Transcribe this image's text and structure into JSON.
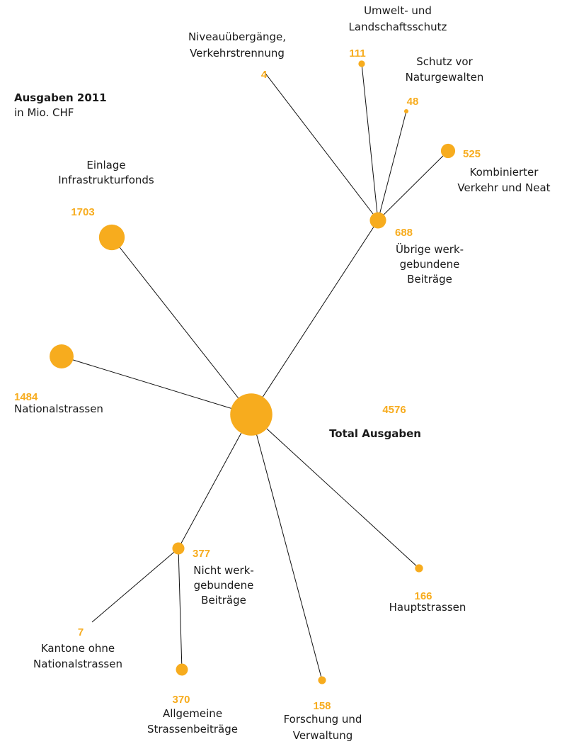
{
  "title": "Ausgaben 2011",
  "subtitle": "in Mio. CHF",
  "total": {
    "value": 4576,
    "label": [
      "Total Ausgaben"
    ],
    "children": [
      {
        "value": 1703,
        "label": [
          "Einlage",
          "Infrastrukturfonds"
        ]
      },
      {
        "value": 1484,
        "label": [
          "Nationalstrassen"
        ]
      },
      {
        "value": 688,
        "label": [
          "Übrige werk-",
          "gebundene",
          "Beiträge"
        ],
        "children": [
          {
            "value": 4,
            "label": [
              "Niveauübergänge,",
              "Verkehrstrennung"
            ]
          },
          {
            "value": 111,
            "label": [
              "Umwelt- und",
              "Landschaftsschutz"
            ]
          },
          {
            "value": 48,
            "label": [
              "Schutz vor",
              "Naturgewalten"
            ]
          },
          {
            "value": 525,
            "label": [
              "Kombinierter",
              "Verkehr und Neat"
            ]
          }
        ]
      },
      {
        "value": 377,
        "label": [
          "Nicht werk-",
          "gebundene",
          "Beiträge"
        ],
        "children": [
          {
            "value": 7,
            "label": [
              "Kantone ohne",
              "Nationalstrassen"
            ]
          },
          {
            "value": 370,
            "label": [
              "Allgemeine",
              "Strassenbeiträge"
            ]
          }
        ]
      },
      {
        "value": 158,
        "label": [
          "Forschung und",
          "Verwaltung"
        ]
      },
      {
        "value": 166,
        "label": [
          "Hauptstrassen"
        ]
      }
    ]
  }
}
